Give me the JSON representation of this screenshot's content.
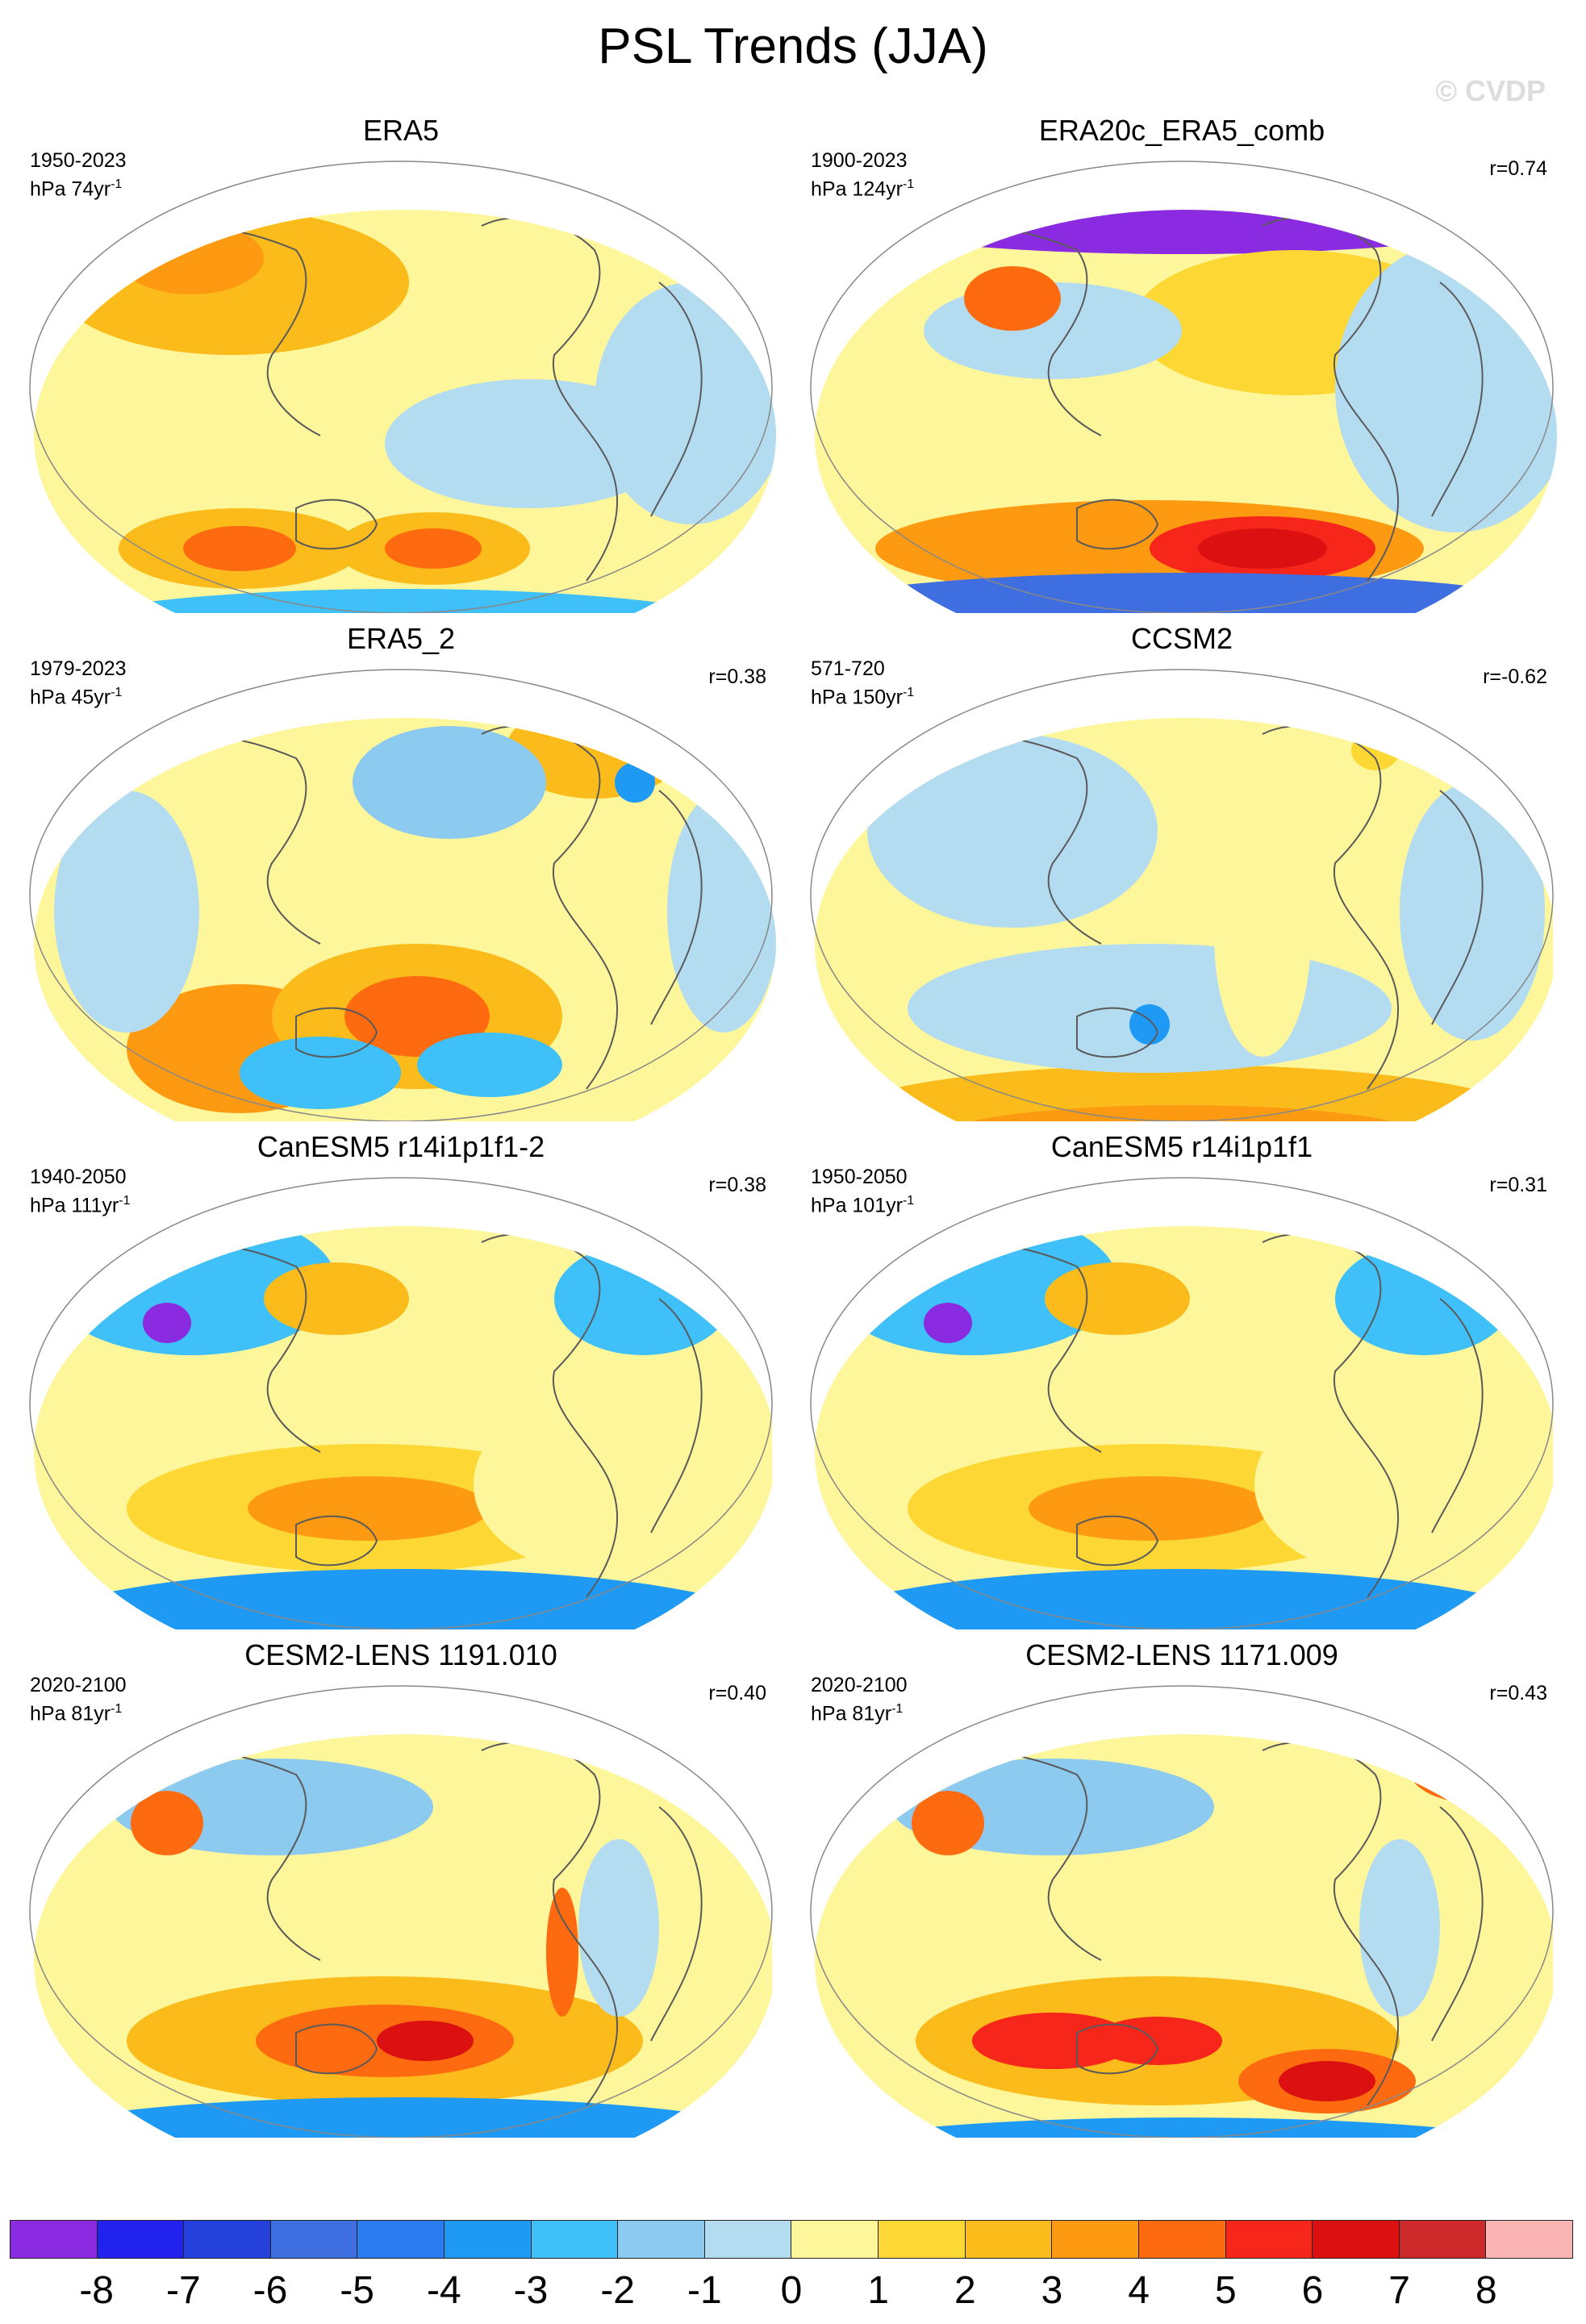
{
  "title": "PSL Trends (JJA)",
  "watermark": "© CVDP",
  "colors": {
    "levels": [
      "#8a2be2",
      "#2222ee",
      "#2441db",
      "#3f6ee0",
      "#2a7cf0",
      "#1e9af5",
      "#3fc0f8",
      "#8ccaf0",
      "#b4dcf0",
      "#fdf69a",
      "#fdd835",
      "#fbbb1a",
      "#fd9a12",
      "#fd6a10",
      "#f6261a",
      "#dc1010",
      "#cc2a2a",
      "#fab4b4"
    ],
    "coast": "#5a5a5a"
  },
  "colorbar": {
    "labels": [
      "-8",
      "-7",
      "-6",
      "-5",
      "-4",
      "-3",
      "-2",
      "-1",
      "0",
      "1",
      "2",
      "3",
      "4",
      "5",
      "6",
      "7",
      "8"
    ]
  },
  "panels": [
    {
      "title": "ERA5",
      "years": "1950-2023",
      "units": "hPa 74yr",
      "sup": "-1",
      "r": ""
    },
    {
      "title": "ERA20c_ERA5_comb",
      "years": "1900-2023",
      "units": "hPa 124yr",
      "sup": "-1",
      "r": "r=0.74"
    },
    {
      "title": "ERA5_2",
      "years": "1979-2023",
      "units": "hPa 45yr",
      "sup": "-1",
      "r": "r=0.38"
    },
    {
      "title": "CCSM2",
      "years": "571-720",
      "units": "hPa 150yr",
      "sup": "-1",
      "r": "r=-0.62"
    },
    {
      "title": "CanESM5 r14i1p1f1-2",
      "years": "1940-2050",
      "units": "hPa 111yr",
      "sup": "-1",
      "r": "r=0.38"
    },
    {
      "title": "CanESM5 r14i1p1f1",
      "years": "1950-2050",
      "units": "hPa 101yr",
      "sup": "-1",
      "r": "r=0.31"
    },
    {
      "title": "CESM2-LENS 1191.010",
      "years": "2020-2100",
      "units": "hPa 81yr",
      "sup": "-1",
      "r": "r=0.40"
    },
    {
      "title": "CESM2-LENS 1171.009",
      "years": "2020-2100",
      "units": "hPa 81yr",
      "sup": "-1",
      "r": "r=0.43"
    }
  ]
}
